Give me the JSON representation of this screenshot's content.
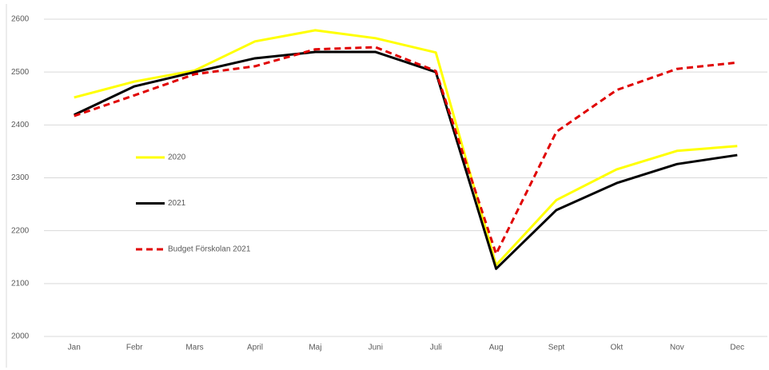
{
  "chart_data": {
    "type": "line",
    "categories": [
      "Jan",
      "Febr",
      "Mars",
      "April",
      "Maj",
      "Juni",
      "Juli",
      "Aug",
      "Sept",
      "Okt",
      "Nov",
      "Dec"
    ],
    "series": [
      {
        "name": "2020",
        "color": "#ffff00",
        "dash": false,
        "values": [
          2452,
          2482,
          2503,
          2558,
          2579,
          2564,
          2537,
          2135,
          2258,
          2316,
          2351,
          2360
        ]
      },
      {
        "name": "2021",
        "color": "#000000",
        "dash": false,
        "values": [
          2419,
          2473,
          2500,
          2526,
          2538,
          2538,
          2500,
          2128,
          2239,
          2290,
          2326,
          2343
        ]
      },
      {
        "name": "Budget Förskolan 2021",
        "color": "#e00000",
        "dash": true,
        "values": [
          2417,
          2456,
          2496,
          2511,
          2543,
          2547,
          2502,
          2156,
          2387,
          2466,
          2506,
          2518
        ]
      }
    ],
    "ylim": [
      2000,
      2600
    ],
    "yticks": [
      2000,
      2100,
      2200,
      2300,
      2400,
      2500,
      2600
    ],
    "grid": true,
    "legend": "left"
  }
}
